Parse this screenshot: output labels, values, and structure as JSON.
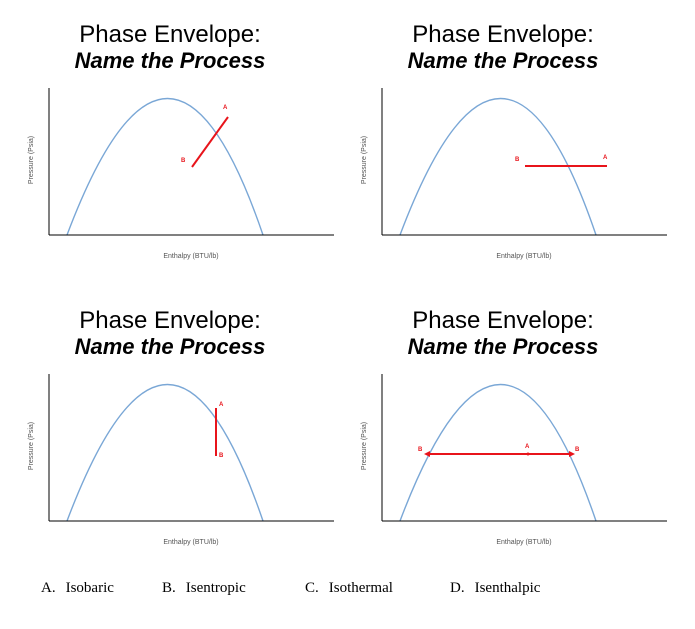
{
  "panels": [
    {
      "title_line1": "Phase Envelope:",
      "title_line2": "Name the Process",
      "ylabel": "Pressure (Psia)",
      "xlabel": "Enthalpy (BTU/lb)",
      "point_labels": [
        "A",
        "B"
      ]
    },
    {
      "title_line1": "Phase Envelope:",
      "title_line2": "Name the Process",
      "ylabel": "Pressure (Psia)",
      "xlabel": "Enthalpy (BTU/lb)",
      "point_labels": [
        "B",
        "A"
      ]
    },
    {
      "title_line1": "Phase Envelope:",
      "title_line2": "Name the Process",
      "ylabel": "Pressure (Psia)",
      "xlabel": "Enthalpy (BTU/lb)",
      "point_labels": [
        "A",
        "B"
      ]
    },
    {
      "title_line1": "Phase Envelope:",
      "title_line2": "Name the Process",
      "ylabel": "Pressure (Psia)",
      "xlabel": "Enthalpy (BTU/lb)",
      "point_labels": [
        "B",
        "A",
        "B"
      ]
    }
  ],
  "options": [
    {
      "letter": "A.",
      "text": "Isobaric"
    },
    {
      "letter": "B.",
      "text": "Isentropic"
    },
    {
      "letter": "C.",
      "text": "Isothermal"
    },
    {
      "letter": "D.",
      "text": "Isenthalpic"
    }
  ],
  "colors": {
    "curve": "#7aa7d6",
    "process": "#e8141b",
    "axis": "#000000",
    "axis_text": "#555555"
  }
}
